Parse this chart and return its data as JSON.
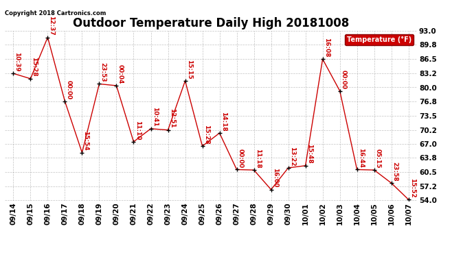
{
  "title": "Outdoor Temperature Daily High 20181008",
  "copyright_text": "Copyright 2018 Cartronics.com",
  "legend_label": "Temperature (°F)",
  "x_labels": [
    "09/14",
    "09/15",
    "09/16",
    "09/17",
    "09/18",
    "09/19",
    "09/20",
    "09/21",
    "09/22",
    "09/23",
    "09/24",
    "09/25",
    "09/26",
    "09/27",
    "09/28",
    "09/29",
    "09/30",
    "10/01",
    "10/02",
    "10/03",
    "10/04",
    "10/05",
    "10/06",
    "10/07"
  ],
  "y_values": [
    83.2,
    82.0,
    91.5,
    76.8,
    65.0,
    80.8,
    80.4,
    67.5,
    70.5,
    70.2,
    81.5,
    66.5,
    69.5,
    61.1,
    61.0,
    56.5,
    61.5,
    62.0,
    86.5,
    79.2,
    61.1,
    61.0,
    58.0,
    54.2
  ],
  "point_labels": [
    "10:39",
    "15:28",
    "12:37",
    "00:00",
    "15:54",
    "23:53",
    "00:04",
    "11:10",
    "10:41",
    "12:51",
    "15:15",
    "15:28",
    "14:18",
    "00:00",
    "11:18",
    "16:00",
    "13:22",
    "15:48",
    "16:08",
    "00:00",
    "16:44",
    "05:15",
    "23:58",
    "15:52"
  ],
  "ylim_min": 54.0,
  "ylim_max": 93.0,
  "yticks": [
    54.0,
    57.2,
    60.5,
    63.8,
    67.0,
    70.2,
    73.5,
    76.8,
    80.0,
    83.2,
    86.5,
    89.8,
    93.0
  ],
  "line_color": "#cc0000",
  "marker_color": "#000000",
  "label_color": "#cc0000",
  "legend_bg": "#cc0000",
  "legend_fg": "#ffffff",
  "title_fontsize": 12,
  "axis_label_fontsize": 7.5,
  "point_label_fontsize": 6.5,
  "background_color": "#ffffff",
  "grid_color": "#999999"
}
